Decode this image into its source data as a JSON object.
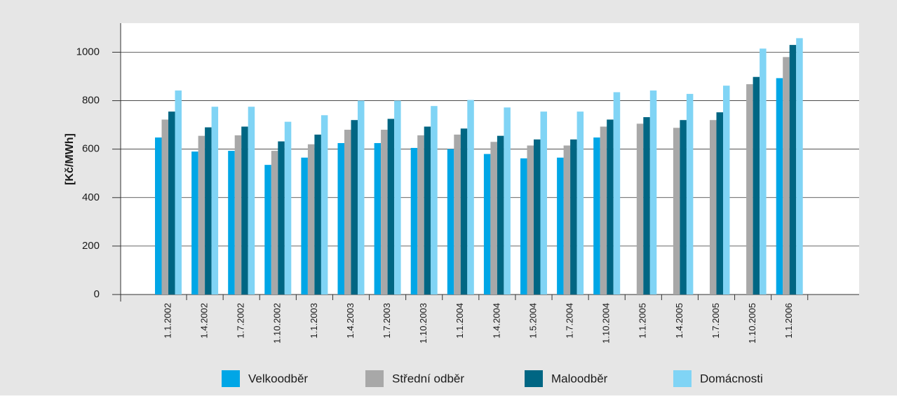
{
  "chart_data": {
    "type": "bar",
    "y_label": "[Kč/MWh]",
    "categories": [
      "1.1.2002",
      "1.4.2002",
      "1.7.2002",
      "1.10.2002",
      "1.1.2003",
      "1.4.2003",
      "1.7.2003",
      "1.10.2003",
      "1.1.2004",
      "1.4.2004",
      "1.5.2004",
      "1.7.2004",
      "1.10.2004",
      "1.1.2005",
      "1.4.2005",
      "1.7.2005",
      "1.10.2005",
      "1.1.2006"
    ],
    "series": [
      {
        "name": "Velkoodběr",
        "color": "#00a6e6",
        "values": [
          648,
          590,
          593,
          535,
          565,
          625,
          625,
          605,
          600,
          580,
          562,
          565,
          648,
          null,
          null,
          null,
          null,
          893
        ]
      },
      {
        "name": "Střední odběr",
        "color": "#a8a8a8",
        "values": [
          722,
          655,
          657,
          593,
          620,
          680,
          680,
          657,
          660,
          630,
          615,
          615,
          693,
          705,
          688,
          720,
          868,
          980
        ]
      },
      {
        "name": "Maloodběr",
        "color": "#006683",
        "values": [
          755,
          690,
          693,
          632,
          660,
          720,
          725,
          693,
          685,
          655,
          640,
          640,
          722,
          732,
          720,
          752,
          898,
          1030
        ]
      },
      {
        "name": "Domácnosti",
        "color": "#80d4f5",
        "values": [
          842,
          775,
          775,
          713,
          740,
          800,
          800,
          778,
          803,
          772,
          755,
          755,
          835,
          842,
          828,
          862,
          1015,
          1058
        ]
      }
    ],
    "ylim": [
      0,
      1120
    ],
    "yticks": [
      0,
      200,
      400,
      600,
      800,
      1000
    ],
    "grid": true,
    "legend": "bottom"
  }
}
